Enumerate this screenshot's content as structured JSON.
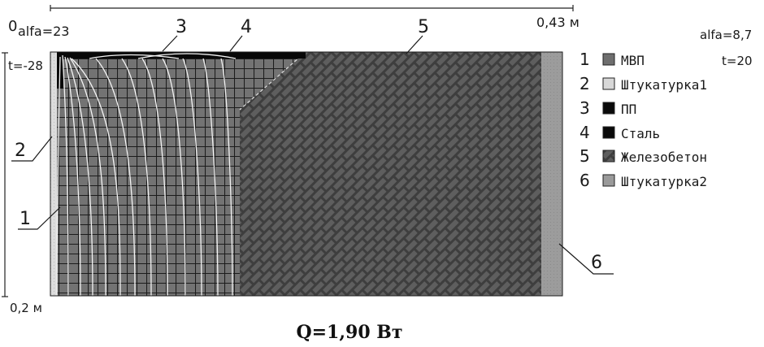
{
  "dimensions": {
    "origin": "0",
    "width": "0,43 м",
    "height": "0,2 м"
  },
  "boundary": {
    "left_alfa": "alfa=23",
    "left_t": "t=-28",
    "right_alfa": "alfa=8,7",
    "right_t": "t=20"
  },
  "legend": [
    {
      "num": "1",
      "label": "МВП",
      "color": "#6e6e6e"
    },
    {
      "num": "2",
      "label": "Штукатурка1",
      "color": "#d8d8d8"
    },
    {
      "num": "3",
      "label": "ПП",
      "color": "#0a0a0a"
    },
    {
      "num": "4",
      "label": "Сталь",
      "color": "#0a0a0a"
    },
    {
      "num": "5",
      "label": "Железобетон",
      "color": "#4a4a4a"
    },
    {
      "num": "6",
      "label": "Штукатурка2",
      "color": "#9a9a9a"
    }
  ],
  "callouts": {
    "c1": "1",
    "c2": "2",
    "c3": "3",
    "c4": "4",
    "c5": "5",
    "c6": "6"
  },
  "heat_flux": "Q=1,90 Вт"
}
